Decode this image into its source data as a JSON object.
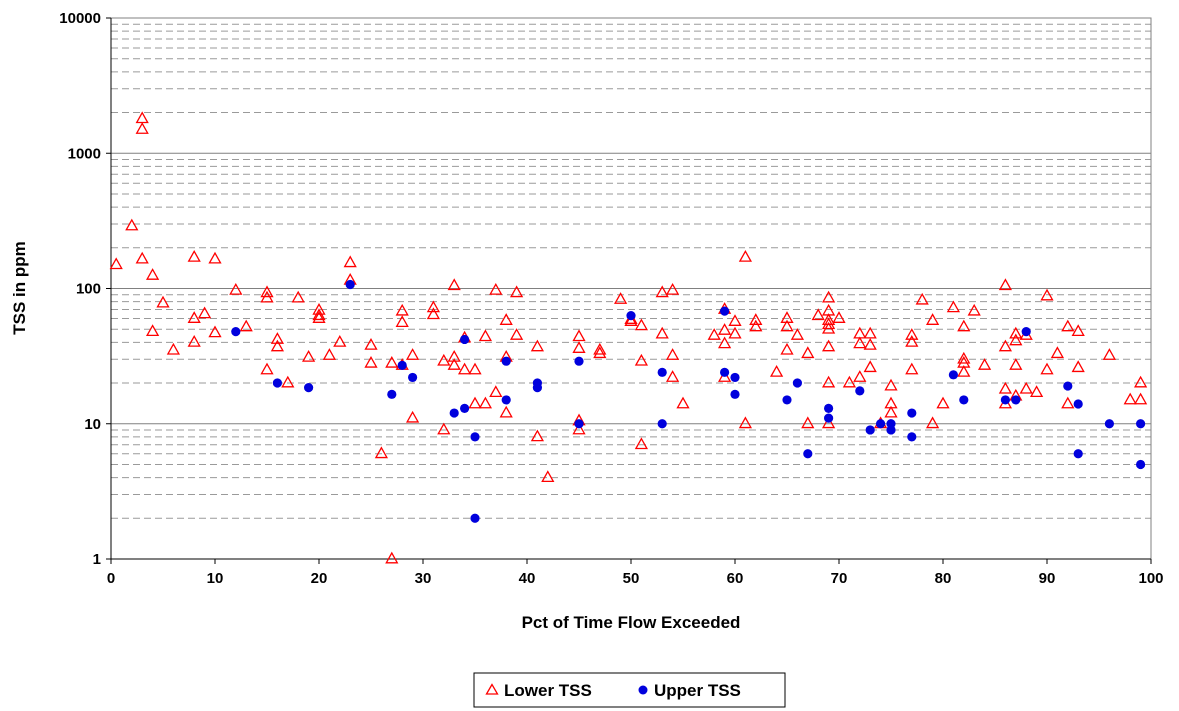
{
  "chart_data": {
    "type": "scatter",
    "xlabel": "Pct of Time Flow Exceeded",
    "ylabel": "TSS in ppm",
    "xlim": [
      0,
      100
    ],
    "ylim": [
      1,
      10000
    ],
    "y_scale": "log",
    "x_ticks": [
      "0",
      "10",
      "20",
      "30",
      "40",
      "50",
      "60",
      "70",
      "80",
      "90",
      "100"
    ],
    "y_ticks": [
      "1",
      "10",
      "100",
      "1000",
      "10000"
    ],
    "grid": "horizontal major solid, minor dashed",
    "legend_position": "bottom",
    "colors": {
      "lower": "#ff0000",
      "upper": "#0000dd"
    },
    "series": [
      {
        "name": "Lower TSS",
        "marker": "open-triangle",
        "points": [
          [
            0.5,
            150
          ],
          [
            2,
            290
          ],
          [
            3,
            1800
          ],
          [
            3,
            1500
          ],
          [
            3,
            165
          ],
          [
            4,
            125
          ],
          [
            4,
            48
          ],
          [
            5,
            78
          ],
          [
            6,
            35
          ],
          [
            8,
            170
          ],
          [
            8,
            60
          ],
          [
            8,
            40
          ],
          [
            9,
            65
          ],
          [
            10,
            165
          ],
          [
            10,
            47
          ],
          [
            12,
            97
          ],
          [
            13,
            52
          ],
          [
            15,
            93
          ],
          [
            15,
            85
          ],
          [
            15,
            25
          ],
          [
            16,
            42
          ],
          [
            16,
            37
          ],
          [
            17,
            20
          ],
          [
            18,
            85
          ],
          [
            19,
            31
          ],
          [
            20,
            69
          ],
          [
            20,
            63
          ],
          [
            20,
            60
          ],
          [
            21,
            32
          ],
          [
            22,
            40
          ],
          [
            23,
            155
          ],
          [
            23,
            115
          ],
          [
            25,
            38
          ],
          [
            25,
            28
          ],
          [
            26,
            6
          ],
          [
            27,
            28
          ],
          [
            27,
            1
          ],
          [
            28,
            68
          ],
          [
            28,
            56
          ],
          [
            28,
            27
          ],
          [
            29,
            32
          ],
          [
            29,
            11
          ],
          [
            31,
            72
          ],
          [
            31,
            64
          ],
          [
            32,
            29
          ],
          [
            32,
            9
          ],
          [
            33,
            105
          ],
          [
            33,
            31
          ],
          [
            33,
            27
          ],
          [
            34,
            43
          ],
          [
            34,
            25
          ],
          [
            35,
            25
          ],
          [
            35,
            14
          ],
          [
            36,
            44
          ],
          [
            36,
            14
          ],
          [
            37,
            97
          ],
          [
            37,
            17
          ],
          [
            38,
            58
          ],
          [
            38,
            31
          ],
          [
            38,
            12
          ],
          [
            39,
            93
          ],
          [
            39,
            45
          ],
          [
            41,
            37
          ],
          [
            41,
            8
          ],
          [
            42,
            4
          ],
          [
            45,
            44
          ],
          [
            45,
            36
          ],
          [
            45,
            10.5
          ],
          [
            45,
            9
          ],
          [
            47,
            35
          ],
          [
            47,
            33
          ],
          [
            49,
            83
          ],
          [
            50,
            59
          ],
          [
            50,
            57
          ],
          [
            51,
            53
          ],
          [
            51,
            29
          ],
          [
            51,
            7
          ],
          [
            53,
            93
          ],
          [
            53,
            46
          ],
          [
            54,
            97
          ],
          [
            54,
            32
          ],
          [
            54,
            22
          ],
          [
            55,
            14
          ],
          [
            58,
            45
          ],
          [
            59,
            70
          ],
          [
            59,
            49
          ],
          [
            59,
            39
          ],
          [
            59,
            22
          ],
          [
            60,
            57
          ],
          [
            60,
            46
          ],
          [
            61,
            170
          ],
          [
            61,
            10
          ],
          [
            62,
            58
          ],
          [
            62,
            52
          ],
          [
            64,
            24
          ],
          [
            65,
            60
          ],
          [
            65,
            52
          ],
          [
            65,
            35
          ],
          [
            66,
            45
          ],
          [
            67,
            33
          ],
          [
            67,
            10
          ],
          [
            68,
            63
          ],
          [
            69,
            85
          ],
          [
            69,
            68
          ],
          [
            69,
            58
          ],
          [
            69,
            54
          ],
          [
            69,
            50
          ],
          [
            69,
            37
          ],
          [
            69,
            20
          ],
          [
            69,
            10
          ],
          [
            70,
            60
          ],
          [
            71,
            20
          ],
          [
            72,
            46
          ],
          [
            72,
            39
          ],
          [
            72,
            22
          ],
          [
            73,
            46
          ],
          [
            73,
            38
          ],
          [
            73,
            26
          ],
          [
            74,
            10
          ],
          [
            75,
            19
          ],
          [
            75,
            14
          ],
          [
            75,
            12
          ],
          [
            77,
            45
          ],
          [
            77,
            40
          ],
          [
            77,
            25
          ],
          [
            78,
            82
          ],
          [
            79,
            58
          ],
          [
            79,
            10
          ],
          [
            80,
            14
          ],
          [
            81,
            72
          ],
          [
            82,
            52
          ],
          [
            82,
            30
          ],
          [
            82,
            28
          ],
          [
            82,
            24
          ],
          [
            83,
            68
          ],
          [
            84,
            27
          ],
          [
            86,
            105
          ],
          [
            86,
            37
          ],
          [
            86,
            18
          ],
          [
            86,
            14
          ],
          [
            87,
            46
          ],
          [
            87,
            41
          ],
          [
            87,
            27
          ],
          [
            87,
            16
          ],
          [
            88,
            45
          ],
          [
            88,
            18
          ],
          [
            89,
            17
          ],
          [
            90,
            88
          ],
          [
            90,
            25
          ],
          [
            91,
            33
          ],
          [
            92,
            52
          ],
          [
            92,
            14
          ],
          [
            93,
            48
          ],
          [
            93,
            26
          ],
          [
            96,
            32
          ],
          [
            98,
            15
          ],
          [
            99,
            20
          ],
          [
            99,
            15
          ]
        ]
      },
      {
        "name": "Upper TSS",
        "marker": "filled-circle",
        "points": [
          [
            12,
            48
          ],
          [
            16,
            20
          ],
          [
            19,
            18.5
          ],
          [
            23,
            107
          ],
          [
            27,
            16.5
          ],
          [
            28,
            27
          ],
          [
            29,
            22
          ],
          [
            33,
            12
          ],
          [
            34,
            42
          ],
          [
            34,
            13
          ],
          [
            35,
            8
          ],
          [
            35,
            2
          ],
          [
            38,
            29
          ],
          [
            38,
            15
          ],
          [
            41,
            20
          ],
          [
            41,
            18.5
          ],
          [
            45,
            29
          ],
          [
            45,
            10
          ],
          [
            50,
            63
          ],
          [
            53,
            24
          ],
          [
            53,
            10
          ],
          [
            59,
            68
          ],
          [
            59,
            24
          ],
          [
            60,
            22
          ],
          [
            60,
            16.5
          ],
          [
            65,
            15
          ],
          [
            66,
            20
          ],
          [
            67,
            6
          ],
          [
            69,
            13
          ],
          [
            69,
            11
          ],
          [
            72,
            17.5
          ],
          [
            73,
            9
          ],
          [
            74,
            10
          ],
          [
            75,
            10
          ],
          [
            75,
            9
          ],
          [
            77,
            12
          ],
          [
            77,
            8
          ],
          [
            81,
            23
          ],
          [
            82,
            15
          ],
          [
            86,
            15
          ],
          [
            87,
            15
          ],
          [
            88,
            48
          ],
          [
            92,
            19
          ],
          [
            93,
            14
          ],
          [
            93,
            6
          ],
          [
            96,
            10
          ],
          [
            99,
            10
          ],
          [
            99,
            5
          ]
        ]
      }
    ]
  }
}
